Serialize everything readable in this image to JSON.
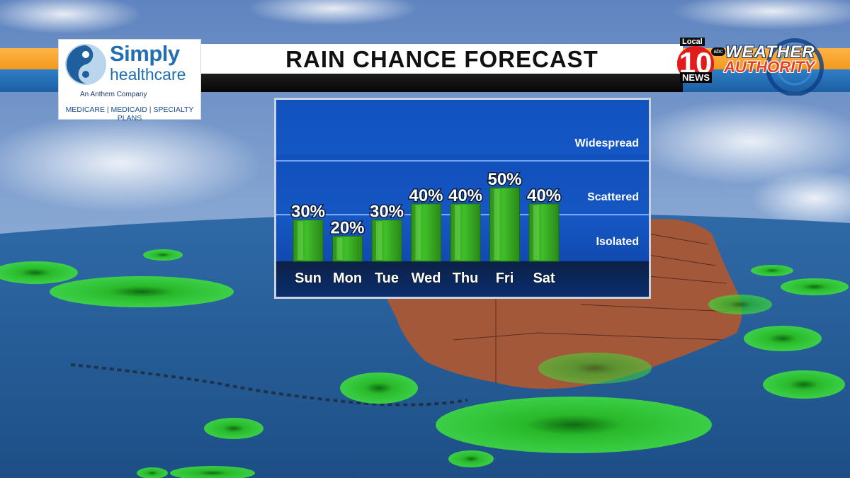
{
  "title": "RAIN CHANCE FORECAST",
  "sponsor": {
    "name_line1": "Simply",
    "name_line2": "healthcare",
    "parent": "An Anthem Company",
    "plans": "MEDICARE | MEDICAID | SPECIALTY PLANS"
  },
  "station": {
    "local": "Local",
    "channel": "10",
    "network": "abc",
    "news": "NEWS",
    "brand_line1": "WEATHER",
    "brand_line2": "AUTHORITY"
  },
  "colors": {
    "bar_green": "#3fbf2a",
    "panel_blue": "#1657c4",
    "band_orange": "#f29a1d",
    "band_blue": "#1c5fa3",
    "station_red": "#e21b1b",
    "sponsor_blue": "#1f6fb2"
  },
  "chart_data": {
    "type": "bar",
    "categories": [
      "Sun",
      "Mon",
      "Tue",
      "Wed",
      "Thu",
      "Fri",
      "Sat"
    ],
    "values": [
      30,
      20,
      30,
      40,
      40,
      50,
      40
    ],
    "value_labels": [
      "30%",
      "20%",
      "30%",
      "40%",
      "40%",
      "50%",
      "40%"
    ],
    "levels": [
      "Isolated",
      "Scattered",
      "Widespread"
    ],
    "ylim": [
      0,
      100
    ],
    "grid": true
  }
}
